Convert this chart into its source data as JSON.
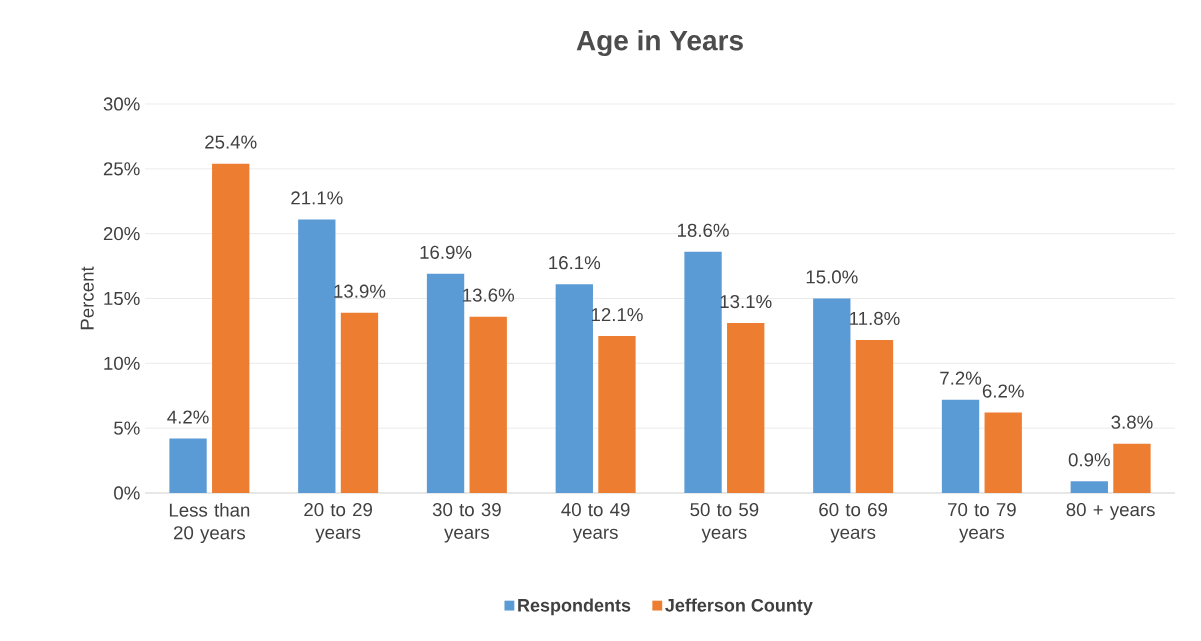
{
  "chart_data": {
    "type": "bar",
    "title": "Age in Years",
    "ylabel": "Percent",
    "categories": [
      "Less than 20 years",
      "20 to 29 years",
      "30 to 39 years",
      "40 to 49 years",
      "50 to 59 years",
      "60 to 69 years",
      "70 to 79 years",
      "80 + years"
    ],
    "series": [
      {
        "name": "Respondents",
        "color": "#5b9bd5",
        "values": [
          4.2,
          21.1,
          16.9,
          16.1,
          18.6,
          15.0,
          7.2,
          0.9
        ],
        "value_labels": [
          "4.2%",
          "21.1%",
          "16.9%",
          "16.1%",
          "18.6%",
          "15.0%",
          "7.2%",
          "0.9%"
        ]
      },
      {
        "name": "Jefferson County",
        "color": "#ed7d31",
        "values": [
          25.4,
          13.9,
          13.6,
          12.1,
          13.1,
          11.8,
          6.2,
          3.8
        ],
        "value_labels": [
          "25.4%",
          "13.9%",
          "13.6%",
          "12.1%",
          "13.1%",
          "11.8%",
          "6.2%",
          "3.8%"
        ]
      }
    ],
    "ylim": [
      0,
      30
    ],
    "yticks": [
      {
        "value": 0,
        "label": "0%"
      },
      {
        "value": 5,
        "label": "5%"
      },
      {
        "value": 10,
        "label": "10%"
      },
      {
        "value": 15,
        "label": "15%"
      },
      {
        "value": 20,
        "label": "20%"
      },
      {
        "value": 25,
        "label": "25%"
      },
      {
        "value": 30,
        "label": "30%"
      }
    ],
    "grid": "y",
    "legend": "bottom"
  }
}
